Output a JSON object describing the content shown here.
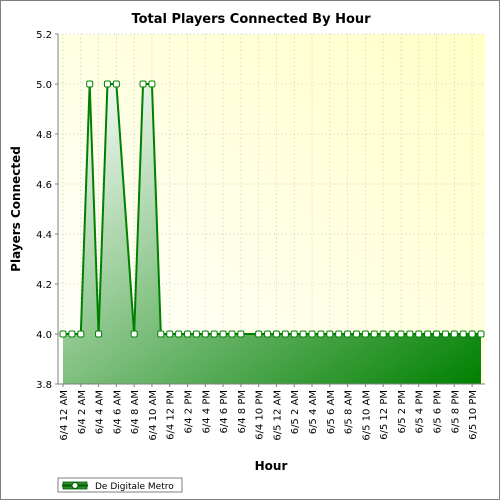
{
  "chart_data": {
    "type": "area",
    "title": "Total Players Connected By Hour",
    "xlabel": "Hour",
    "ylabel": "Players Connected",
    "ylim": [
      3.8,
      5.2
    ],
    "yticks": [
      3.8,
      4.0,
      4.2,
      4.4,
      4.6,
      4.8,
      5.0,
      5.2
    ],
    "ytick_labels": [
      "3.8",
      "4.0",
      "4.2",
      "4.4",
      "4.6",
      "4.8",
      "5.0",
      "5.2"
    ],
    "grid": true,
    "legend_position": "bottom-left",
    "series_color": "#008000",
    "x_tick_labels": [
      "6/4 12 AM",
      "6/4 2 AM",
      "6/4 4 AM",
      "6/4 6 AM",
      "6/4 8 AM",
      "6/4 10 AM",
      "6/4 12 PM",
      "6/4 2 PM",
      "6/4 4 PM",
      "6/4 6 PM",
      "6/4 8 PM",
      "6/4 10 PM",
      "6/5 12 AM",
      "6/5 2 AM",
      "6/5 4 AM",
      "6/5 6 AM",
      "6/5 8 AM",
      "6/5 10 AM",
      "6/5 12 PM",
      "6/5 2 PM",
      "6/5 4 PM",
      "6/5 6 PM",
      "6/5 8 PM",
      "6/5 10 PM"
    ],
    "x_hours_range": [
      0,
      47
    ],
    "series": [
      {
        "name": "De Digitale Metro",
        "points": [
          [
            0,
            4.0
          ],
          [
            1,
            4.0
          ],
          [
            2,
            4.0
          ],
          [
            3,
            5.0
          ],
          [
            4,
            4.0
          ],
          [
            5,
            5.0
          ],
          [
            6,
            5.0
          ],
          [
            8,
            4.0
          ],
          [
            9,
            5.0
          ],
          [
            10,
            5.0
          ],
          [
            11,
            4.0
          ],
          [
            12,
            4.0
          ],
          [
            13,
            4.0
          ],
          [
            14,
            4.0
          ],
          [
            15,
            4.0
          ],
          [
            16,
            4.0
          ],
          [
            17,
            4.0
          ],
          [
            18,
            4.0
          ],
          [
            19,
            4.0
          ],
          [
            20,
            4.0
          ],
          [
            22,
            4.0
          ],
          [
            23,
            4.0
          ],
          [
            24,
            4.0
          ],
          [
            25,
            4.0
          ],
          [
            26,
            4.0
          ],
          [
            27,
            4.0
          ],
          [
            28,
            4.0
          ],
          [
            29,
            4.0
          ],
          [
            30,
            4.0
          ],
          [
            31,
            4.0
          ],
          [
            32,
            4.0
          ],
          [
            33,
            4.0
          ],
          [
            34,
            4.0
          ],
          [
            35,
            4.0
          ],
          [
            36,
            4.0
          ],
          [
            37,
            4.0
          ],
          [
            38,
            4.0
          ],
          [
            39,
            4.0
          ],
          [
            40,
            4.0
          ],
          [
            41,
            4.0
          ],
          [
            42,
            4.0
          ],
          [
            43,
            4.0
          ],
          [
            44,
            4.0
          ],
          [
            45,
            4.0
          ],
          [
            46,
            4.0
          ],
          [
            47,
            4.0
          ]
        ]
      }
    ]
  }
}
